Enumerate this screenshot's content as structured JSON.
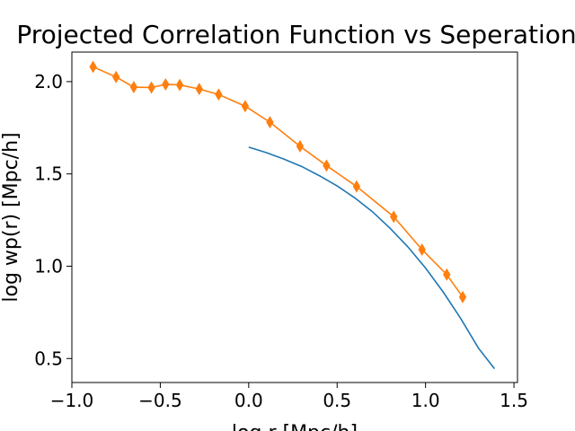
{
  "chart_data": {
    "type": "line",
    "title": "Projected Correlation Function vs Seperation",
    "xlabel": "log r [Mpc/h]",
    "ylabel": "log wp(r) [Mpc/h]",
    "xlim": [
      -1.0,
      1.52
    ],
    "ylim": [
      0.37,
      2.16
    ],
    "x_ticks": [
      -1.0,
      -0.5,
      0.0,
      0.5,
      1.0,
      1.5
    ],
    "x_tick_labels": [
      "−1.0",
      "−0.5",
      "0.0",
      "0.5",
      "1.0",
      "1.5"
    ],
    "y_ticks": [
      0.5,
      1.0,
      1.5,
      2.0
    ],
    "y_tick_labels": [
      "0.5",
      "1.0",
      "1.5",
      "2.0"
    ],
    "grid": false,
    "legend": null,
    "series": [
      {
        "color": "#1f77b4",
        "marker": "none",
        "x": [
          0.0,
          0.1,
          0.2,
          0.3,
          0.4,
          0.5,
          0.6,
          0.7,
          0.8,
          0.9,
          1.0,
          1.1,
          1.2,
          1.3,
          1.39
        ],
        "y": [
          1.645,
          1.615,
          1.58,
          1.54,
          1.49,
          1.435,
          1.37,
          1.295,
          1.205,
          1.105,
          0.99,
          0.86,
          0.715,
          0.555,
          0.445
        ]
      },
      {
        "color": "#ff7f0e",
        "marker": "thin_diamond",
        "x": [
          -0.88,
          -0.75,
          -0.65,
          -0.55,
          -0.47,
          -0.39,
          -0.28,
          -0.17,
          -0.02,
          0.12,
          0.29,
          0.44,
          0.61,
          0.82,
          0.98,
          1.12,
          1.21
        ],
        "y": [
          2.08,
          2.025,
          1.97,
          1.968,
          1.985,
          1.982,
          1.96,
          1.93,
          1.867,
          1.78,
          1.65,
          1.545,
          1.432,
          1.268,
          1.09,
          0.955,
          0.833
        ]
      }
    ]
  }
}
